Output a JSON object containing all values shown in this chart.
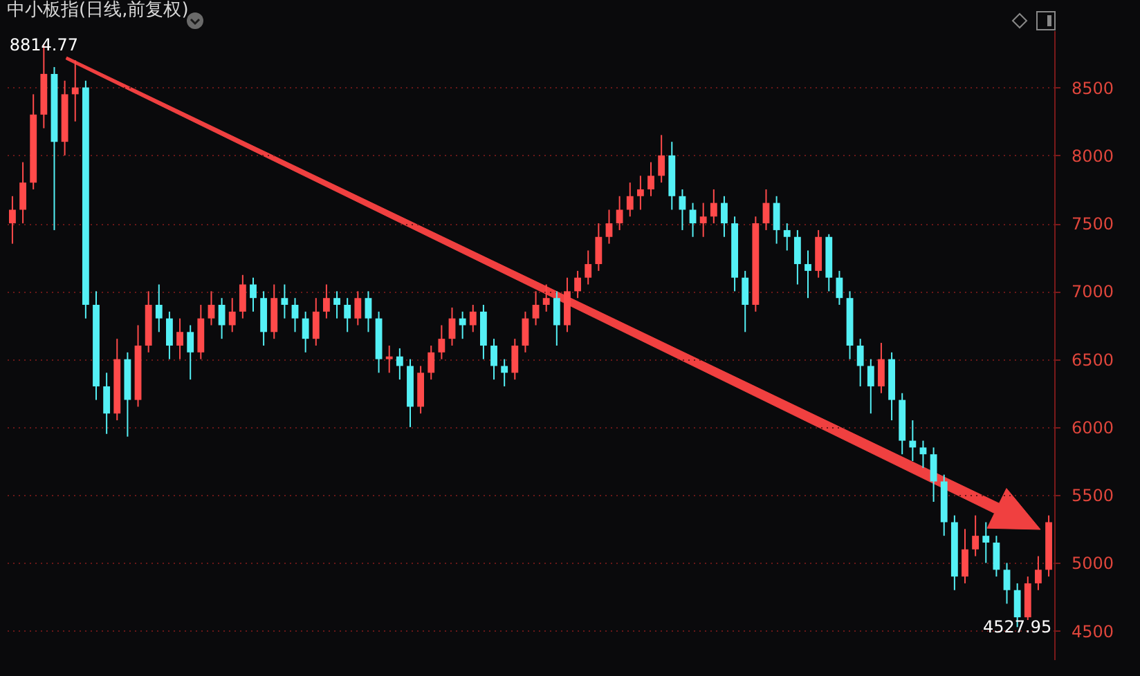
{
  "chart_data": {
    "type": "candlestick",
    "title": "中小板指(日线,前复权)",
    "categories": [
      null,
      null,
      null,
      null,
      null,
      null,
      null,
      null,
      null,
      null,
      null,
      null,
      null,
      null,
      null,
      null,
      null,
      null,
      null,
      null,
      null,
      null,
      null,
      null,
      null,
      null,
      null,
      null,
      null,
      null,
      null,
      null,
      null,
      null,
      null,
      null,
      null,
      null,
      null,
      null,
      null,
      null,
      null,
      null,
      null,
      null,
      null,
      null,
      null,
      null,
      null,
      null,
      null,
      null,
      null,
      null,
      null,
      null,
      null,
      null,
      null,
      null,
      null,
      null,
      null,
      null,
      null,
      null,
      null,
      null,
      null,
      null,
      null,
      null,
      null,
      null,
      null,
      null,
      null,
      null,
      null,
      null,
      null,
      null,
      null,
      null,
      null,
      null,
      null,
      null,
      null,
      null,
      null,
      null,
      null,
      null,
      null,
      null,
      null,
      null
    ],
    "ohlc": [
      [
        7500,
        7700,
        7350,
        7600
      ],
      [
        7600,
        7950,
        7500,
        7800
      ],
      [
        7800,
        8450,
        7750,
        8300
      ],
      [
        8300,
        8814.77,
        8200,
        8600
      ],
      [
        8600,
        8650,
        7450,
        8100
      ],
      [
        8100,
        8550,
        8000,
        8450
      ],
      [
        8450,
        8700,
        8250,
        8500
      ],
      [
        8500,
        8550,
        6800,
        6900
      ],
      [
        6900,
        7000,
        6200,
        6300
      ],
      [
        6300,
        6400,
        5950,
        6100
      ],
      [
        6100,
        6650,
        6050,
        6500
      ],
      [
        6500,
        6550,
        5930,
        6200
      ],
      [
        6200,
        6750,
        6150,
        6600
      ],
      [
        6600,
        7000,
        6550,
        6900
      ],
      [
        6900,
        7050,
        6700,
        6800
      ],
      [
        6800,
        6850,
        6500,
        6600
      ],
      [
        6600,
        6800,
        6500,
        6700
      ],
      [
        6700,
        6750,
        6350,
        6550
      ],
      [
        6550,
        6900,
        6500,
        6800
      ],
      [
        6800,
        7000,
        6750,
        6900
      ],
      [
        6900,
        6950,
        6650,
        6750
      ],
      [
        6750,
        6950,
        6700,
        6850
      ],
      [
        6850,
        7120,
        6800,
        7050
      ],
      [
        7050,
        7100,
        6850,
        6950
      ],
      [
        6950,
        7000,
        6600,
        6700
      ],
      [
        6700,
        7050,
        6650,
        6950
      ],
      [
        6950,
        7050,
        6800,
        6900
      ],
      [
        6900,
        6950,
        6700,
        6800
      ],
      [
        6800,
        6850,
        6550,
        6650
      ],
      [
        6650,
        6950,
        6600,
        6850
      ],
      [
        6850,
        7050,
        6800,
        6950
      ],
      [
        6950,
        7000,
        6800,
        6900
      ],
      [
        6900,
        6950,
        6700,
        6800
      ],
      [
        6800,
        7000,
        6750,
        6950
      ],
      [
        6950,
        7000,
        6700,
        6800
      ],
      [
        6800,
        6850,
        6400,
        6500
      ],
      [
        6500,
        6600,
        6400,
        6520
      ],
      [
        6520,
        6580,
        6350,
        6450
      ],
      [
        6450,
        6500,
        6000,
        6150
      ],
      [
        6150,
        6450,
        6100,
        6400
      ],
      [
        6400,
        6600,
        6350,
        6550
      ],
      [
        6550,
        6750,
        6500,
        6650
      ],
      [
        6650,
        6880,
        6600,
        6800
      ],
      [
        6800,
        6850,
        6650,
        6750
      ],
      [
        6750,
        6900,
        6700,
        6850
      ],
      [
        6850,
        6900,
        6500,
        6600
      ],
      [
        6600,
        6650,
        6350,
        6450
      ],
      [
        6450,
        6500,
        6300,
        6400
      ],
      [
        6400,
        6650,
        6350,
        6600
      ],
      [
        6600,
        6850,
        6550,
        6800
      ],
      [
        6800,
        7000,
        6750,
        6900
      ],
      [
        6900,
        7050,
        6850,
        6950
      ],
      [
        6950,
        7000,
        6600,
        6750
      ],
      [
        6750,
        7100,
        6700,
        7000
      ],
      [
        7000,
        7150,
        6950,
        7100
      ],
      [
        7100,
        7300,
        7050,
        7200
      ],
      [
        7200,
        7500,
        7150,
        7400
      ],
      [
        7400,
        7600,
        7350,
        7500
      ],
      [
        7500,
        7700,
        7450,
        7600
      ],
      [
        7600,
        7800,
        7550,
        7700
      ],
      [
        7700,
        7850,
        7600,
        7750
      ],
      [
        7750,
        7950,
        7700,
        7850
      ],
      [
        7850,
        8150,
        7800,
        8000
      ],
      [
        8000,
        8100,
        7600,
        7700
      ],
      [
        7700,
        7750,
        7450,
        7600
      ],
      [
        7600,
        7650,
        7400,
        7500
      ],
      [
        7500,
        7650,
        7400,
        7550
      ],
      [
        7550,
        7750,
        7500,
        7650
      ],
      [
        7650,
        7700,
        7400,
        7500
      ],
      [
        7500,
        7550,
        7000,
        7100
      ],
      [
        7100,
        7150,
        6700,
        6900
      ],
      [
        6900,
        7550,
        6850,
        7500
      ],
      [
        7500,
        7750,
        7450,
        7650
      ],
      [
        7650,
        7700,
        7350,
        7450
      ],
      [
        7450,
        7500,
        7300,
        7400
      ],
      [
        7400,
        7450,
        7050,
        7200
      ],
      [
        7200,
        7300,
        6950,
        7150
      ],
      [
        7150,
        7450,
        7100,
        7400
      ],
      [
        7400,
        7420,
        7000,
        7100
      ],
      [
        7100,
        7150,
        6900,
        6950
      ],
      [
        6950,
        7000,
        6500,
        6600
      ],
      [
        6600,
        6650,
        6300,
        6450
      ],
      [
        6450,
        6500,
        6100,
        6300
      ],
      [
        6300,
        6620,
        6250,
        6500
      ],
      [
        6500,
        6550,
        6050,
        6200
      ],
      [
        6200,
        6250,
        5800,
        5900
      ],
      [
        5900,
        6050,
        5750,
        5850
      ],
      [
        5850,
        5900,
        5700,
        5800
      ],
      [
        5800,
        5850,
        5450,
        5600
      ],
      [
        5600,
        5650,
        5200,
        5300
      ],
      [
        5300,
        5350,
        4800,
        4900
      ],
      [
        4900,
        5250,
        4850,
        5100
      ],
      [
        5100,
        5350,
        5050,
        5200
      ],
      [
        5200,
        5300,
        5000,
        5150
      ],
      [
        5150,
        5200,
        4900,
        4950
      ],
      [
        4950,
        5000,
        4700,
        4800
      ],
      [
        4800,
        4850,
        4527.95,
        4600
      ],
      [
        4600,
        4900,
        4580,
        4850
      ],
      [
        4850,
        5050,
        4800,
        4950
      ],
      [
        4950,
        5350,
        4900,
        5300
      ]
    ],
    "ylim": [
      4290,
      8920
    ],
    "yticks": [
      4500,
      5000,
      5500,
      6000,
      6500,
      7000,
      7500,
      8000,
      8500
    ],
    "grid": "y",
    "tick_labels": "y",
    "annotations": [
      {
        "text": "8814.77",
        "y": 8814.77
      },
      {
        "text": "4527.95",
        "y": 4527.95
      }
    ]
  }
}
